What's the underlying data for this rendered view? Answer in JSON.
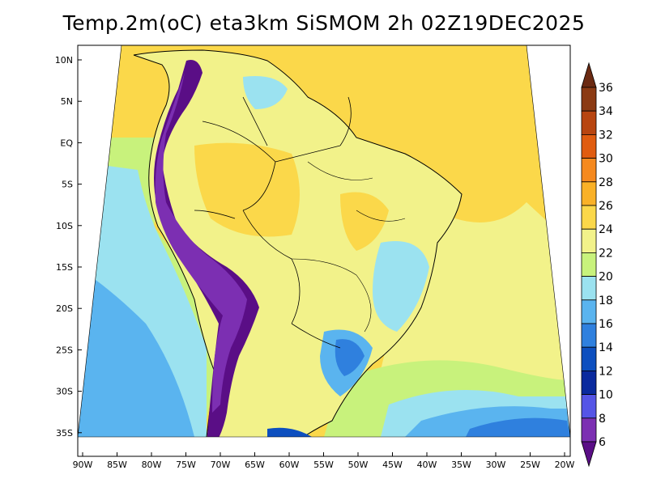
{
  "title": "Temp.2m(oC) eta3km SiSMOM 2h 02Z19DEC2025",
  "lat_labels": [
    "10N",
    "5N",
    "EQ",
    "5S",
    "10S",
    "15S",
    "20S",
    "25S",
    "30S",
    "35S"
  ],
  "lon_labels": [
    "90W",
    "85W",
    "80W",
    "75W",
    "70W",
    "65W",
    "60W",
    "55W",
    "50W",
    "45W",
    "40W",
    "35W",
    "30W",
    "25W",
    "20W"
  ],
  "colorbar": {
    "labels": [
      "36",
      "34",
      "32",
      "30",
      "28",
      "26",
      "24",
      "22",
      "20",
      "18",
      "16",
      "14",
      "12",
      "10",
      "8",
      "6"
    ],
    "colors": [
      "#6b2a12",
      "#8b3a13",
      "#b84510",
      "#e05c10",
      "#f5891e",
      "#f9b127",
      "#fbd84a",
      "#f2f28a",
      "#c8f27c",
      "#9be2f0",
      "#5ab4ef",
      "#2f80de",
      "#0d4fbf",
      "#0a2a9e",
      "#5555e6",
      "#7c2fb2",
      "#5a0e86"
    ],
    "unit": "oC"
  },
  "legend_palette": {
    "ocean_warm": "#fbd84a",
    "ocean_mid": "#f2f28a",
    "ocean_cool": "#9be2f0",
    "land_main": "#f2f28a",
    "andes": "#5a0e86",
    "border": "#000000"
  }
}
